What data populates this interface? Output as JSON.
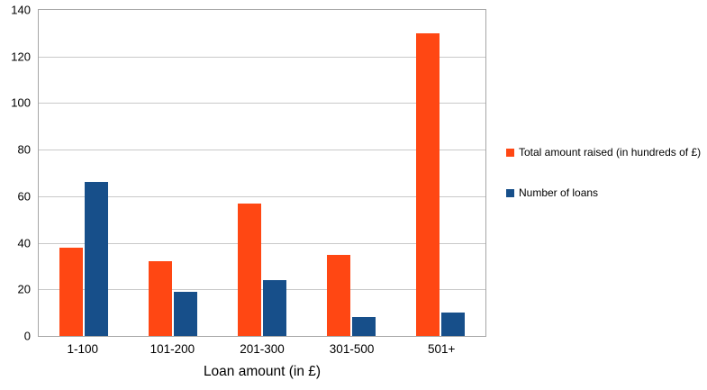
{
  "chart_data": {
    "type": "bar",
    "title": "",
    "xlabel": "Loan amount (in £)",
    "ylabel": "",
    "categories": [
      "1-100",
      "101-200",
      "201-300",
      "301-500",
      "501+"
    ],
    "series": [
      {
        "name": "Total amount raised (in hundreds of £)",
        "color": "#ff4713",
        "values": [
          38,
          32,
          57,
          35,
          130
        ]
      },
      {
        "name": "Number of loans",
        "color": "#174f8a",
        "values": [
          66,
          19,
          24,
          8,
          10
        ]
      }
    ],
    "ylim": [
      0,
      140
    ],
    "ytick_step": 20,
    "grid": "horizontal",
    "legend_position": "right",
    "colors": {
      "gridline": "#c9c9c9",
      "plot_border": "#a6a6a6",
      "background": "#ffffff"
    }
  }
}
